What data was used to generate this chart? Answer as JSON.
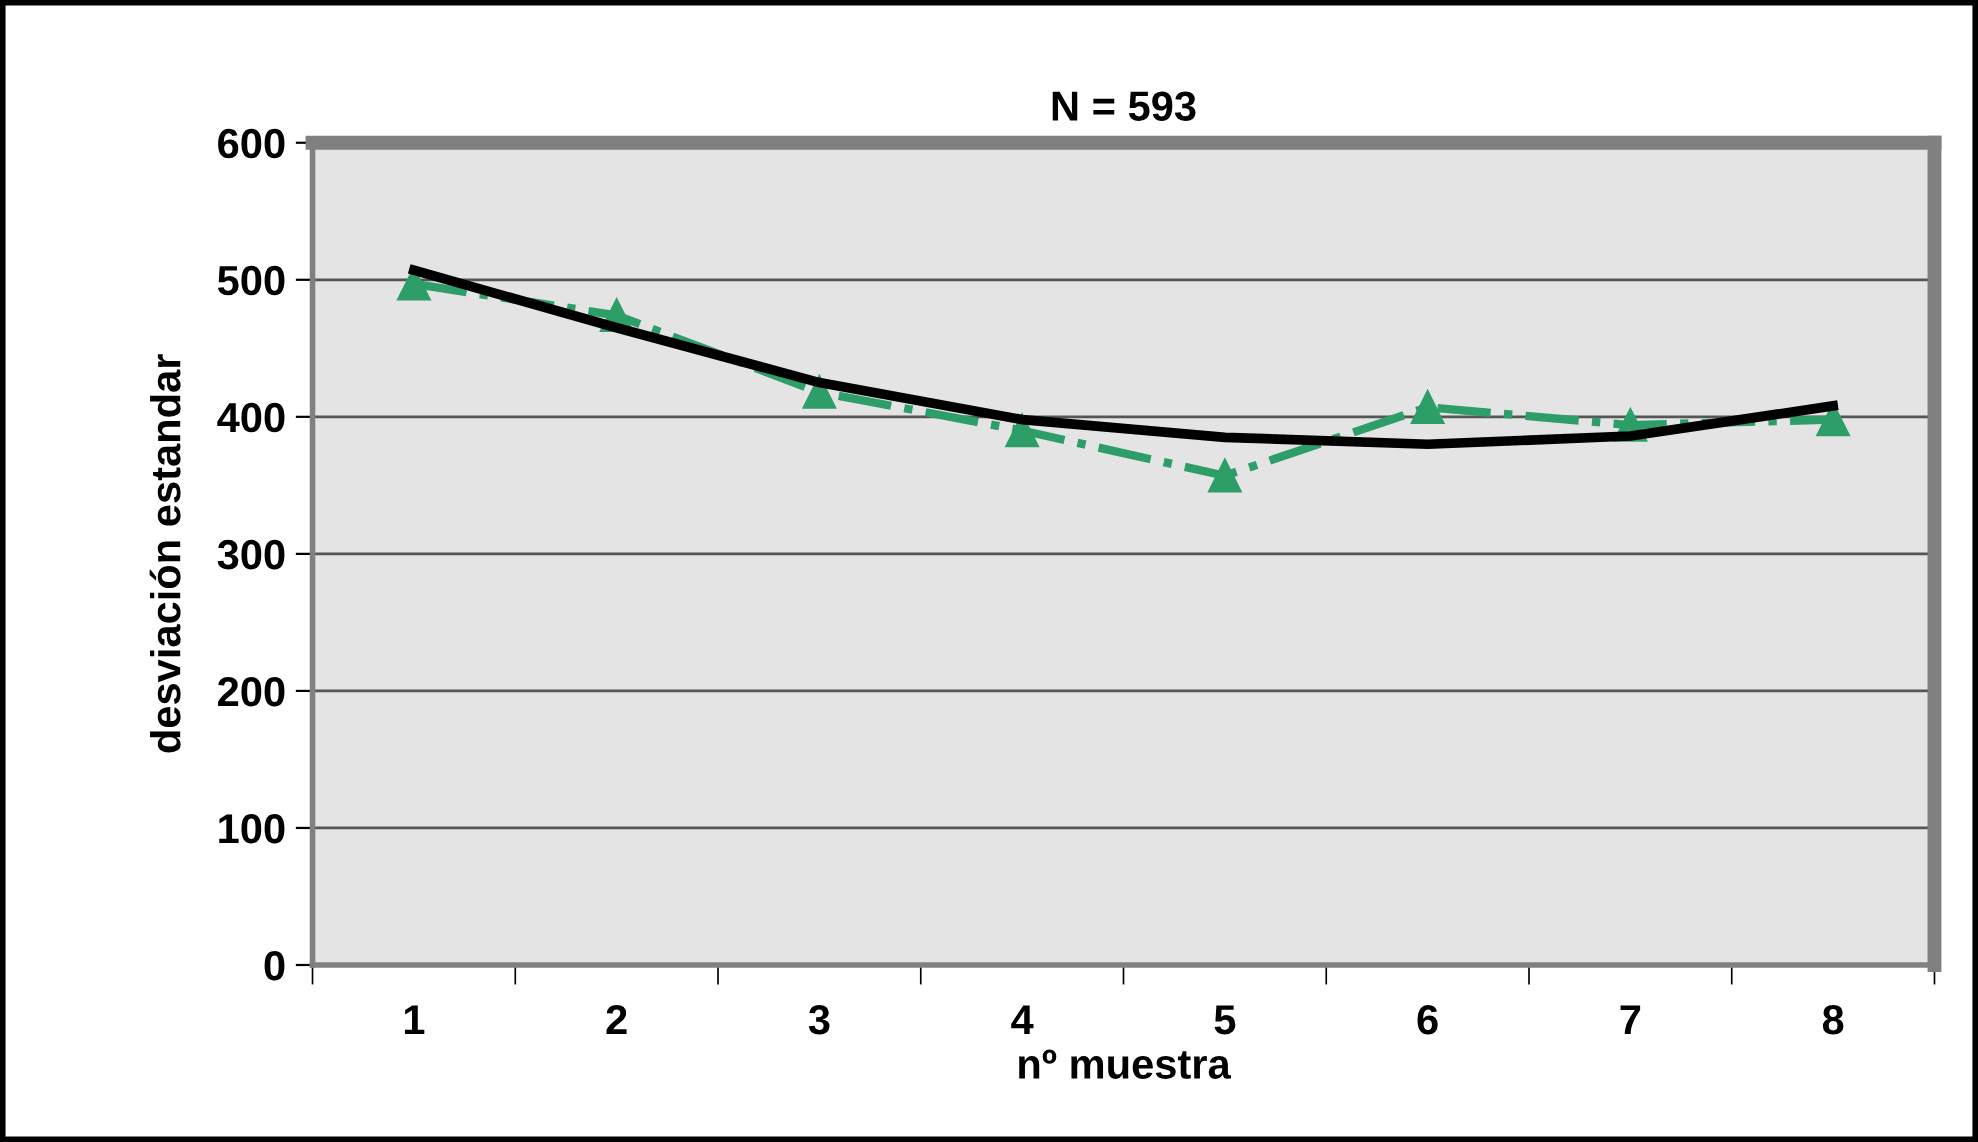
{
  "chart_data": {
    "type": "line",
    "title": "N = 593",
    "xlabel": "nº muestra",
    "ylabel": "desviación estandar",
    "categories": [
      "1",
      "2",
      "3",
      "4",
      "5",
      "6",
      "7",
      "8"
    ],
    "series": [
      {
        "color": "#2e9e68",
        "values": [
          497,
          474,
          418,
          390,
          357,
          407,
          394,
          398
        ],
        "marker": "triangle",
        "line_style": "dashdot"
      },
      {
        "color": "#000000",
        "values": [
          507,
          465,
          425,
          398,
          385,
          380,
          386,
          408
        ],
        "marker": "none",
        "line_style": "solid"
      }
    ],
    "ylim": [
      0,
      600
    ],
    "yticks": [
      0,
      100,
      200,
      300,
      400,
      500,
      600
    ],
    "grid": "y",
    "legend": false
  }
}
